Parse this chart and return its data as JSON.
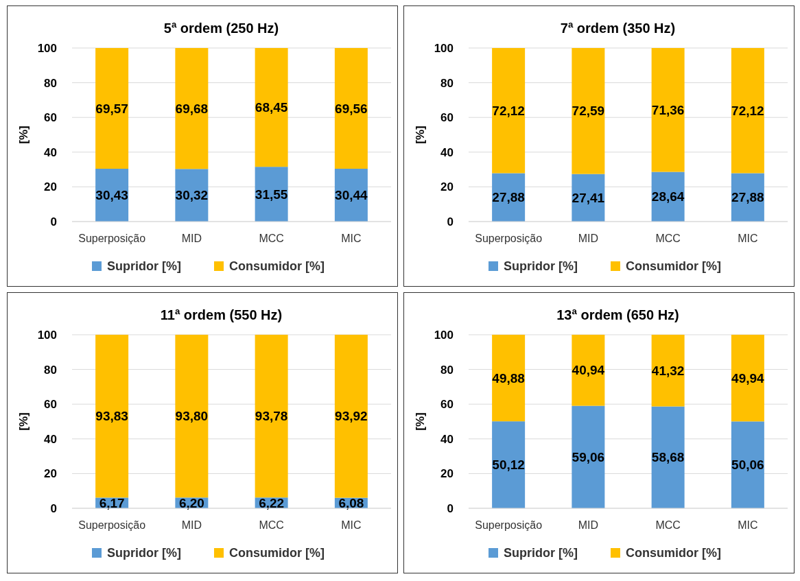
{
  "chart_data": [
    {
      "type": "bar",
      "title": "5ª ordem (250 Hz)",
      "ylabel": "[%]",
      "categories": [
        "Superposição",
        "MID",
        "MCC",
        "MIC"
      ],
      "stacked": true,
      "ylim": [
        0,
        100
      ],
      "yticks": [
        0,
        20,
        40,
        60,
        80,
        100
      ],
      "grid": "y",
      "legend": "bottom",
      "series": [
        {
          "name": "Supridor [%]",
          "color": "#5b9bd5",
          "values": [
            30.43,
            30.32,
            31.55,
            30.44
          ],
          "value_labels": [
            "30,43",
            "30,32",
            "31,55",
            "30,44"
          ]
        },
        {
          "name": "Consumidor [%]",
          "color": "#ffc000",
          "values": [
            69.57,
            69.68,
            68.45,
            69.56
          ],
          "value_labels": [
            "69,57",
            "69,68",
            "68,45",
            "69,56"
          ]
        }
      ]
    },
    {
      "type": "bar",
      "title": "7ª ordem (350 Hz)",
      "ylabel": "[%]",
      "categories": [
        "Superposição",
        "MID",
        "MCC",
        "MIC"
      ],
      "stacked": true,
      "ylim": [
        0,
        100
      ],
      "yticks": [
        0,
        20,
        40,
        60,
        80,
        100
      ],
      "grid": "y",
      "legend": "bottom",
      "series": [
        {
          "name": "Supridor [%]",
          "color": "#5b9bd5",
          "values": [
            27.88,
            27.41,
            28.64,
            27.88
          ],
          "value_labels": [
            "27,88",
            "27,41",
            "28,64",
            "27,88"
          ]
        },
        {
          "name": "Consumidor [%]",
          "color": "#ffc000",
          "values": [
            72.12,
            72.59,
            71.36,
            72.12
          ],
          "value_labels": [
            "72,12",
            "72,59",
            "71,36",
            "72,12"
          ]
        }
      ]
    },
    {
      "type": "bar",
      "title": "11ª ordem (550 Hz)",
      "ylabel": "[%]",
      "categories": [
        "Superposição",
        "MID",
        "MCC",
        "MIC"
      ],
      "stacked": true,
      "ylim": [
        0,
        100
      ],
      "yticks": [
        0,
        20,
        40,
        60,
        80,
        100
      ],
      "grid": "y",
      "legend": "bottom",
      "series": [
        {
          "name": "Supridor [%]",
          "color": "#5b9bd5",
          "values": [
            6.17,
            6.2,
            6.22,
            6.08
          ],
          "value_labels": [
            "6,17",
            "6,20",
            "6,22",
            "6,08"
          ]
        },
        {
          "name": "Consumidor [%]",
          "color": "#ffc000",
          "values": [
            93.83,
            93.8,
            93.78,
            93.92
          ],
          "value_labels": [
            "93,83",
            "93,80",
            "93,78",
            "93,92"
          ]
        }
      ]
    },
    {
      "type": "bar",
      "title": "13ª ordem (650 Hz)",
      "ylabel": "[%]",
      "categories": [
        "Superposição",
        "MID",
        "MCC",
        "MIC"
      ],
      "stacked": true,
      "ylim": [
        0,
        100
      ],
      "yticks": [
        0,
        20,
        40,
        60,
        80,
        100
      ],
      "grid": "y",
      "legend": "bottom",
      "series": [
        {
          "name": "Supridor [%]",
          "color": "#5b9bd5",
          "values": [
            50.12,
            59.06,
            58.68,
            50.06
          ],
          "value_labels": [
            "50,12",
            "59,06",
            "58,68",
            "50,06"
          ]
        },
        {
          "name": "Consumidor [%]",
          "color": "#ffc000",
          "values": [
            49.88,
            40.94,
            41.32,
            49.94
          ],
          "value_labels": [
            "49,88",
            "40,94",
            "41,32",
            "49,94"
          ]
        }
      ]
    }
  ]
}
